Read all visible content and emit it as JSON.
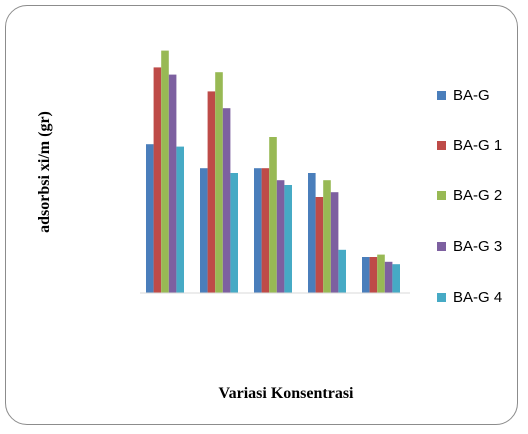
{
  "chart_data": {
    "type": "bar",
    "title": "",
    "xlabel": "Variasi Konsentrasi",
    "ylabel": "adsorbsi  xi/m (gr)",
    "ylim": [
      0,
      100
    ],
    "categories": [
      "",
      "",
      "",
      "",
      ""
    ],
    "series": [
      {
        "name": "BA-G",
        "color": "#4a7ebb",
        "values": [
          62,
          52,
          52,
          50,
          15
        ]
      },
      {
        "name": "BA-G 1",
        "color": "#be4b48",
        "values": [
          94,
          84,
          52,
          40,
          15
        ]
      },
      {
        "name": "BA-G 2",
        "color": "#98b954",
        "values": [
          101,
          92,
          65,
          47,
          16
        ]
      },
      {
        "name": "BA-G 3",
        "color": "#7d60a0",
        "values": [
          91,
          77,
          47,
          42,
          13
        ]
      },
      {
        "name": "BA-G 4",
        "color": "#46aac5",
        "values": [
          61,
          50,
          45,
          18,
          12
        ]
      }
    ],
    "grid": false,
    "legend_position": "right"
  }
}
